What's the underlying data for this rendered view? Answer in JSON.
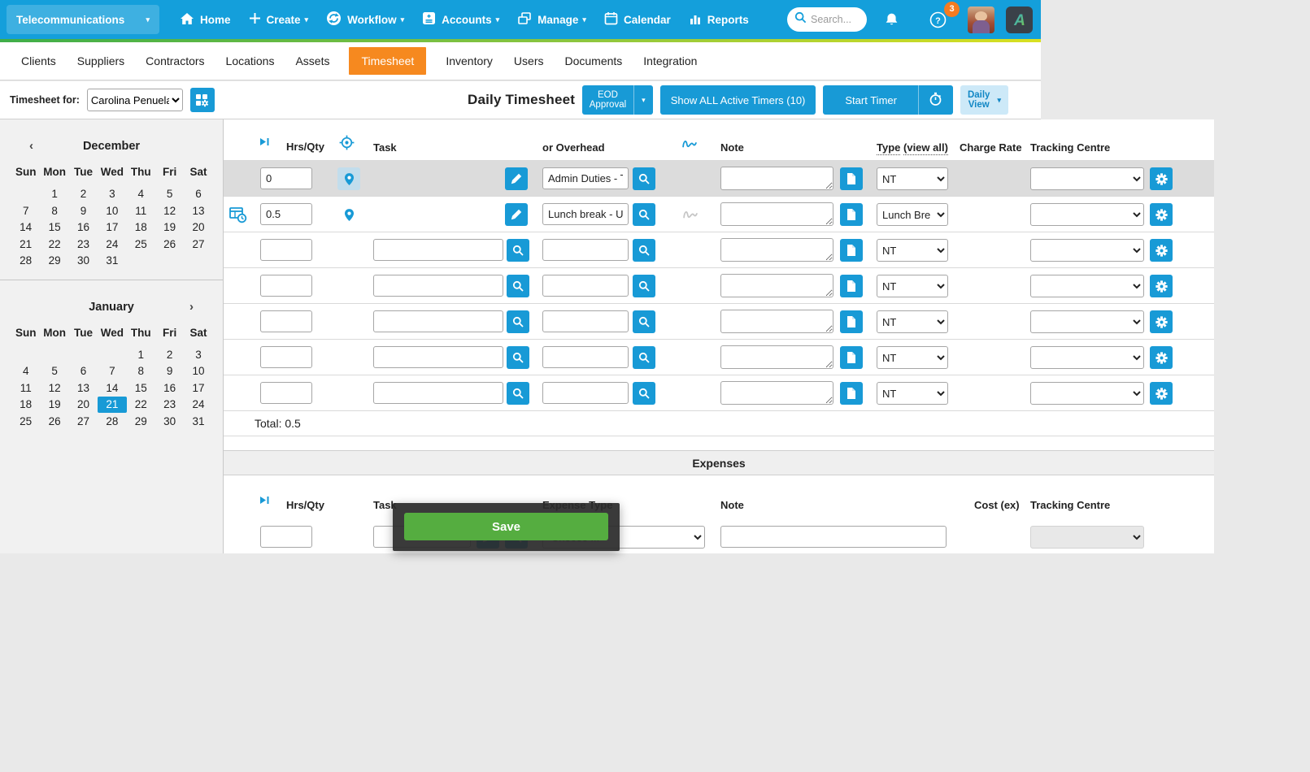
{
  "topbar": {
    "org_selector": "Telecommunications",
    "menu": [
      "Home",
      "Create",
      "Workflow",
      "Accounts",
      "Manage",
      "Calendar",
      "Reports"
    ],
    "search_placeholder": "Search...",
    "notification_badge": "3",
    "logo_letter": "A"
  },
  "nav": {
    "tabs": [
      "Clients",
      "Suppliers",
      "Contractors",
      "Locations",
      "Assets",
      "Timesheet",
      "Inventory",
      "Users",
      "Documents",
      "Integration"
    ],
    "active_tab": "Timesheet"
  },
  "toolbar": {
    "timesheet_for_label": "Timesheet for:",
    "user_selected": "Carolina Penuela",
    "title": "Daily Timesheet",
    "eod_line1": "EOD",
    "eod_line2": "Approval",
    "show_timers_label": "Show ALL Active Timers (10)",
    "start_timer_label": "Start Timer",
    "view_line1": "Daily",
    "view_line2": "View"
  },
  "calendars": [
    {
      "title": "December",
      "nav": "prev",
      "day_names": [
        "Sun",
        "Mon",
        "Tue",
        "Wed",
        "Thu",
        "Fri",
        "Sat"
      ],
      "weeks": [
        [
          "",
          1,
          2,
          3,
          4,
          5,
          6
        ],
        [
          7,
          8,
          9,
          10,
          11,
          12,
          13
        ],
        [
          14,
          15,
          16,
          17,
          18,
          19,
          20
        ],
        [
          21,
          22,
          23,
          24,
          25,
          26,
          27
        ],
        [
          28,
          29,
          30,
          31,
          "",
          "",
          ""
        ]
      ],
      "selected": null
    },
    {
      "title": "January",
      "nav": "next",
      "day_names": [
        "Sun",
        "Mon",
        "Tue",
        "Wed",
        "Thu",
        "Fri",
        "Sat"
      ],
      "weeks": [
        [
          "",
          "",
          "",
          "",
          1,
          2,
          3
        ],
        [
          4,
          5,
          6,
          7,
          8,
          9,
          10
        ],
        [
          11,
          12,
          13,
          14,
          15,
          16,
          17
        ],
        [
          18,
          19,
          20,
          21,
          22,
          23,
          24
        ],
        [
          25,
          26,
          27,
          28,
          29,
          30,
          31
        ]
      ],
      "selected": 21
    }
  ],
  "timesheet": {
    "headers": {
      "hrs": "Hrs/Qty",
      "task": "Task",
      "overhead": "or Overhead",
      "note": "Note",
      "type": "Type",
      "view_all": "(view all)",
      "charge_rate": "Charge Rate",
      "tracking": "Tracking Centre"
    },
    "rows": [
      {
        "hrs": "0",
        "overhead": "Admin Duties - Tel",
        "type": "NT",
        "tracking": "",
        "mode": "overhead",
        "highlight": true,
        "pin": true,
        "pin_highlight": true,
        "timer": false,
        "signature": false
      },
      {
        "hrs": "0.5",
        "overhead": "Lunch break - Unp",
        "type": "Lunch Bre",
        "tracking": "",
        "mode": "overhead",
        "highlight": false,
        "pin": true,
        "pin_highlight": false,
        "timer": true,
        "signature": true
      },
      {
        "hrs": "",
        "task": "",
        "overhead": "",
        "type": "NT",
        "tracking": "",
        "mode": "empty",
        "highlight": false,
        "pin": false,
        "pin_highlight": false,
        "timer": false,
        "signature": false
      },
      {
        "hrs": "",
        "task": "",
        "overhead": "",
        "type": "NT",
        "tracking": "",
        "mode": "empty",
        "highlight": false,
        "pin": false,
        "pin_highlight": false,
        "timer": false,
        "signature": false
      },
      {
        "hrs": "",
        "task": "",
        "overhead": "",
        "type": "NT",
        "tracking": "",
        "mode": "empty",
        "highlight": false,
        "pin": false,
        "pin_highlight": false,
        "timer": false,
        "signature": false
      },
      {
        "hrs": "",
        "task": "",
        "overhead": "",
        "type": "NT",
        "tracking": "",
        "mode": "empty",
        "highlight": false,
        "pin": false,
        "pin_highlight": false,
        "timer": false,
        "signature": false
      },
      {
        "hrs": "",
        "task": "",
        "overhead": "",
        "type": "NT",
        "tracking": "",
        "mode": "empty",
        "highlight": false,
        "pin": false,
        "pin_highlight": false,
        "timer": false,
        "signature": false
      }
    ],
    "total": "Total: 0.5"
  },
  "expenses": {
    "section_title": "Expenses",
    "headers": {
      "hrs": "Hrs/Qty",
      "task": "Task",
      "expense_type": "Expense Type",
      "note": "Note",
      "cost": "Cost (ex)",
      "tracking": "Tracking Centre"
    },
    "row": {
      "hrs": "",
      "task": "",
      "expense_type": "Choose ...",
      "note": "",
      "tracking": ""
    }
  },
  "save_dialog": {
    "save_label": "Save"
  },
  "colors": {
    "topbar_blue": "#149fdb",
    "button_blue": "#189ad6",
    "active_tab_orange": "#f6891f",
    "badge_orange": "#f47b20",
    "accent_green": "#3fae49",
    "accent_yellow": "#d9e021",
    "save_green": "#55ad40",
    "unlock_green": "#4caf50",
    "selected_day_blue": "#189ad6",
    "row_highlight_gray": "#dcdcdc"
  }
}
